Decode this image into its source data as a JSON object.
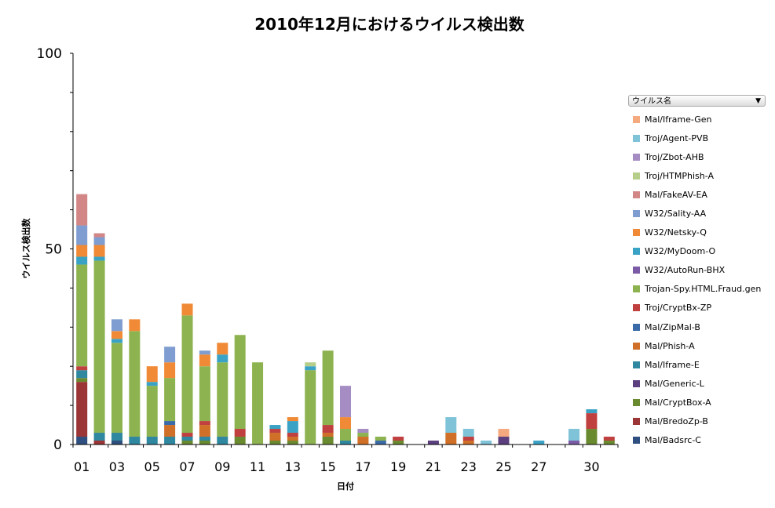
{
  "chart_data": {
    "type": "bar",
    "stacked": true,
    "title": "2010年12月におけるウイルス検出数",
    "xlabel": "日付",
    "ylabel": "ウイルス検出数",
    "ylim": [
      0,
      100
    ],
    "yticks": [
      0,
      50,
      100
    ],
    "grid": false,
    "legend_position": "right",
    "legend_title": "ウイルス名",
    "categories": [
      "01",
      "02",
      "03",
      "04",
      "05",
      "06",
      "07",
      "08",
      "09",
      "10",
      "11",
      "12",
      "13",
      "14",
      "15",
      "16",
      "17",
      "18",
      "19",
      "20",
      "21",
      "22",
      "23",
      "24",
      "25",
      "26",
      "27",
      "28",
      "29",
      "30",
      "31"
    ],
    "x_tick_labels": [
      "01",
      "03",
      "05",
      "07",
      "09",
      "11",
      "13",
      "15",
      "17",
      "19",
      "21",
      "23",
      "25",
      "27",
      "30"
    ],
    "x_tick_categories": [
      "01",
      "03",
      "05",
      "07",
      "09",
      "11",
      "13",
      "15",
      "17",
      "19",
      "21",
      "23",
      "25",
      "27",
      "30"
    ],
    "series": [
      {
        "name": "Mal/Badsrc-C",
        "color": "#2e4f7f",
        "values": [
          2,
          0,
          1,
          0,
          0,
          0,
          0,
          0,
          0,
          0,
          0,
          0,
          0,
          0,
          0,
          0,
          0,
          0,
          0,
          0,
          0,
          0,
          0,
          0,
          0,
          0,
          0,
          0,
          0,
          0,
          0
        ]
      },
      {
        "name": "Mal/BredoZp-B",
        "color": "#9c3535",
        "values": [
          14,
          1,
          0,
          0,
          0,
          0,
          0,
          0,
          0,
          0,
          0,
          0,
          0,
          0,
          0,
          0,
          0,
          0,
          0,
          0,
          0,
          0,
          0,
          0,
          0,
          0,
          0,
          0,
          0,
          0,
          0
        ]
      },
      {
        "name": "Mal/CryptBox-A",
        "color": "#6a8a30",
        "values": [
          1,
          0,
          0,
          0,
          0,
          0,
          1,
          1,
          0,
          2,
          0,
          1,
          1,
          0,
          2,
          0,
          0,
          0,
          1,
          0,
          0,
          0,
          0,
          0,
          0,
          0,
          0,
          0,
          0,
          4,
          1
        ]
      },
      {
        "name": "Mal/Generic-L",
        "color": "#5c3f7e",
        "values": [
          0,
          0,
          0,
          0,
          0,
          0,
          0,
          0,
          0,
          0,
          0,
          0,
          0,
          0,
          0,
          0,
          0,
          0,
          0,
          0,
          1,
          0,
          0,
          0,
          2,
          0,
          0,
          0,
          0,
          0,
          0
        ]
      },
      {
        "name": "Mal/Iframe-E",
        "color": "#2f87a0",
        "values": [
          2,
          2,
          2,
          2,
          2,
          2,
          1,
          1,
          2,
          0,
          0,
          0,
          0,
          0,
          0,
          1,
          0,
          0,
          0,
          0,
          0,
          0,
          0,
          0,
          0,
          0,
          0,
          0,
          0,
          0,
          0
        ]
      },
      {
        "name": "Mal/Phish-A",
        "color": "#d07028",
        "values": [
          0,
          0,
          0,
          0,
          0,
          3,
          0,
          3,
          0,
          0,
          0,
          2,
          1,
          0,
          1,
          0,
          2,
          0,
          0,
          0,
          0,
          3,
          1,
          0,
          0,
          0,
          0,
          0,
          0,
          0,
          0
        ]
      },
      {
        "name": "Mal/ZipMal-B",
        "color": "#3a6aa8",
        "values": [
          0,
          0,
          0,
          0,
          0,
          1,
          0,
          0,
          0,
          0,
          0,
          0,
          0,
          0,
          0,
          0,
          0,
          1,
          0,
          0,
          0,
          0,
          0,
          0,
          0,
          0,
          0,
          0,
          0,
          0,
          0
        ]
      },
      {
        "name": "Troj/CryptBx-ZP",
        "color": "#c04040",
        "values": [
          1,
          0,
          0,
          0,
          0,
          0,
          1,
          1,
          0,
          2,
          0,
          1,
          1,
          0,
          2,
          0,
          0,
          0,
          1,
          0,
          0,
          0,
          1,
          0,
          0,
          0,
          0,
          0,
          0,
          4,
          1
        ]
      },
      {
        "name": "Trojan-Spy.HTML.Fraud.gen",
        "color": "#8db350",
        "values": [
          26,
          44,
          23,
          27,
          13,
          11,
          30,
          14,
          19,
          24,
          21,
          0,
          0,
          19,
          19,
          3,
          1,
          1,
          0,
          0,
          0,
          0,
          0,
          0,
          0,
          0,
          0,
          0,
          0,
          0,
          0
        ]
      },
      {
        "name": "W32/AutoRun-BHX",
        "color": "#7b5aa6",
        "values": [
          0,
          0,
          0,
          0,
          0,
          0,
          0,
          0,
          0,
          0,
          0,
          0,
          0,
          0,
          0,
          0,
          0,
          0,
          0,
          0,
          0,
          0,
          0,
          0,
          0,
          0,
          0,
          0,
          1,
          0,
          0
        ]
      },
      {
        "name": "W32/MyDoom-O",
        "color": "#3aa3c5",
        "values": [
          2,
          1,
          1,
          0,
          1,
          0,
          0,
          0,
          2,
          0,
          0,
          1,
          3,
          1,
          0,
          0,
          0,
          0,
          0,
          0,
          0,
          0,
          0,
          0,
          0,
          0,
          1,
          0,
          0,
          1,
          0
        ]
      },
      {
        "name": "W32/Netsky-Q",
        "color": "#f08a36",
        "values": [
          3,
          3,
          2,
          3,
          4,
          4,
          3,
          3,
          3,
          0,
          0,
          0,
          1,
          0,
          0,
          3,
          0,
          0,
          0,
          0,
          0,
          0,
          0,
          0,
          0,
          0,
          0,
          0,
          0,
          0,
          0
        ]
      },
      {
        "name": "W32/Sality-AA",
        "color": "#7f9dd0",
        "values": [
          5,
          2,
          3,
          0,
          0,
          4,
          0,
          1,
          0,
          0,
          0,
          0,
          0,
          0,
          0,
          0,
          0,
          0,
          0,
          0,
          0,
          0,
          0,
          0,
          0,
          0,
          0,
          0,
          0,
          0,
          0
        ]
      },
      {
        "name": "Mal/FakeAV-EA",
        "color": "#d28686",
        "values": [
          8,
          1,
          0,
          0,
          0,
          0,
          0,
          0,
          0,
          0,
          0,
          0,
          0,
          0,
          0,
          0,
          0,
          0,
          0,
          0,
          0,
          0,
          0,
          0,
          0,
          0,
          0,
          0,
          0,
          0,
          0
        ]
      },
      {
        "name": "Troj/HTMPhish-A",
        "color": "#b5ce8a",
        "values": [
          0,
          0,
          0,
          0,
          0,
          0,
          0,
          0,
          0,
          0,
          0,
          0,
          0,
          1,
          0,
          0,
          0,
          0,
          0,
          0,
          0,
          0,
          0,
          0,
          0,
          0,
          0,
          0,
          0,
          0,
          0
        ]
      },
      {
        "name": "Troj/Zbot-AHB",
        "color": "#a58cc2",
        "values": [
          0,
          0,
          0,
          0,
          0,
          0,
          0,
          0,
          0,
          0,
          0,
          0,
          0,
          0,
          0,
          8,
          1,
          0,
          0,
          0,
          0,
          0,
          0,
          0,
          0,
          0,
          0,
          0,
          0,
          0,
          0
        ]
      },
      {
        "name": "Troj/Agent-PVB",
        "color": "#7ec3d8",
        "values": [
          0,
          0,
          0,
          0,
          0,
          0,
          0,
          0,
          0,
          0,
          0,
          0,
          0,
          0,
          0,
          0,
          0,
          0,
          0,
          0,
          0,
          4,
          2,
          1,
          0,
          0,
          0,
          0,
          3,
          0,
          0
        ]
      },
      {
        "name": "Mal/Iframe-Gen",
        "color": "#f4a97f",
        "values": [
          0,
          0,
          0,
          0,
          0,
          0,
          0,
          0,
          0,
          0,
          0,
          0,
          0,
          0,
          0,
          0,
          0,
          0,
          0,
          0,
          0,
          0,
          0,
          0,
          2,
          0,
          0,
          0,
          0,
          0,
          0
        ]
      }
    ]
  }
}
